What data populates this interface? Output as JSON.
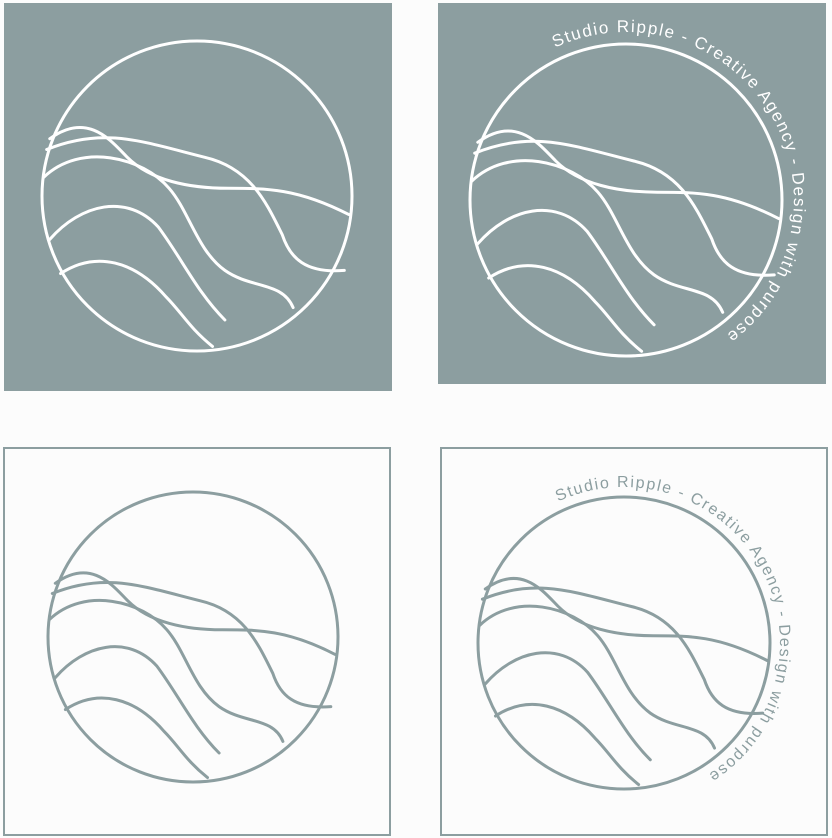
{
  "brand": {
    "ring_text": "Studio Ripple - Creative Agency - Design with purpose"
  },
  "colors": {
    "slate": "#8c9ea0",
    "white": "#ffffff",
    "page_background": "#fcfcfc"
  },
  "variants": [
    {
      "id": "tile-1",
      "name": "solid-logo-mark",
      "background": "slate",
      "ink": "white",
      "text_ring": false
    },
    {
      "id": "tile-2",
      "name": "solid-logo-with-text",
      "background": "slate",
      "ink": "white",
      "text_ring": true
    },
    {
      "id": "tile-3",
      "name": "outline-logo-mark",
      "background": "none",
      "ink": "slate",
      "text_ring": false
    },
    {
      "id": "tile-4",
      "name": "outline-logo-with-text",
      "background": "none",
      "ink": "slate",
      "text_ring": true
    }
  ]
}
